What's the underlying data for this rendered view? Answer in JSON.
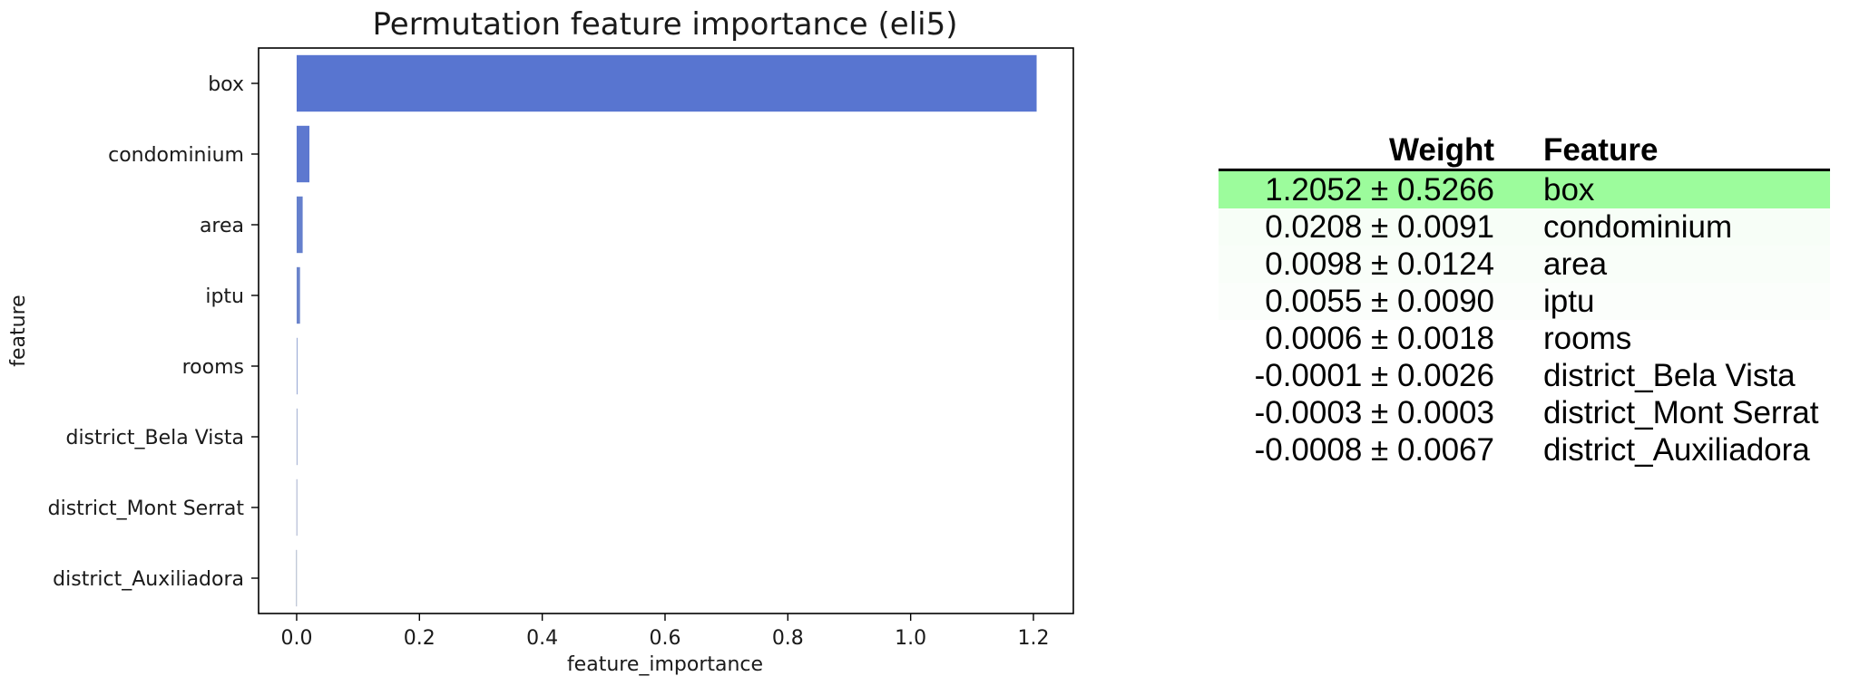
{
  "chart_data": {
    "type": "bar",
    "orientation": "horizontal",
    "title": "Permutation feature importance (eli5)",
    "xlabel": "feature_importance",
    "ylabel": "feature",
    "categories": [
      "box",
      "condominium",
      "area",
      "iptu",
      "rooms",
      "district_Bela Vista",
      "district_Mont Serrat",
      "district_Auxiliadora"
    ],
    "values": [
      1.2052,
      0.0208,
      0.0098,
      0.0055,
      0.0006,
      -0.0001,
      -0.0003,
      -0.0008
    ],
    "xlim": [
      -0.062,
      1.265
    ],
    "xticks": [
      "0.0",
      "0.2",
      "0.4",
      "0.6",
      "0.8",
      "1.0",
      "1.2"
    ],
    "grid": false,
    "bar_colors": [
      "#5875d0",
      "#5d78cf",
      "#6580cd",
      "#6b84cb",
      "#7a8fc8",
      "#8697c3",
      "#8e9cc0",
      "#98a3bd"
    ]
  },
  "table": {
    "headers": {
      "weight": "Weight",
      "feature": "Feature"
    },
    "rows": [
      {
        "weight": "1.2052 ± 0.5266",
        "feature": "box",
        "bg": "#9cfc9c"
      },
      {
        "weight": "0.0208 ± 0.0091",
        "feature": "condominium",
        "bg": "#f7fef7"
      },
      {
        "weight": "0.0098 ± 0.0124",
        "feature": "area",
        "bg": "#f9fef9"
      },
      {
        "weight": "0.0055 ± 0.0090",
        "feature": "iptu",
        "bg": "#fbfefb"
      },
      {
        "weight": "0.0006 ± 0.0018",
        "feature": "rooms",
        "bg": "#ffffff"
      },
      {
        "weight": "-0.0001 ± 0.0026",
        "feature": "district_Bela Vista",
        "bg": "#ffffff"
      },
      {
        "weight": "-0.0003 ± 0.0003",
        "feature": "district_Mont Serrat",
        "bg": "#ffffff"
      },
      {
        "weight": "-0.0008 ± 0.0067",
        "feature": "district_Auxiliadora",
        "bg": "#ffffff"
      }
    ]
  }
}
